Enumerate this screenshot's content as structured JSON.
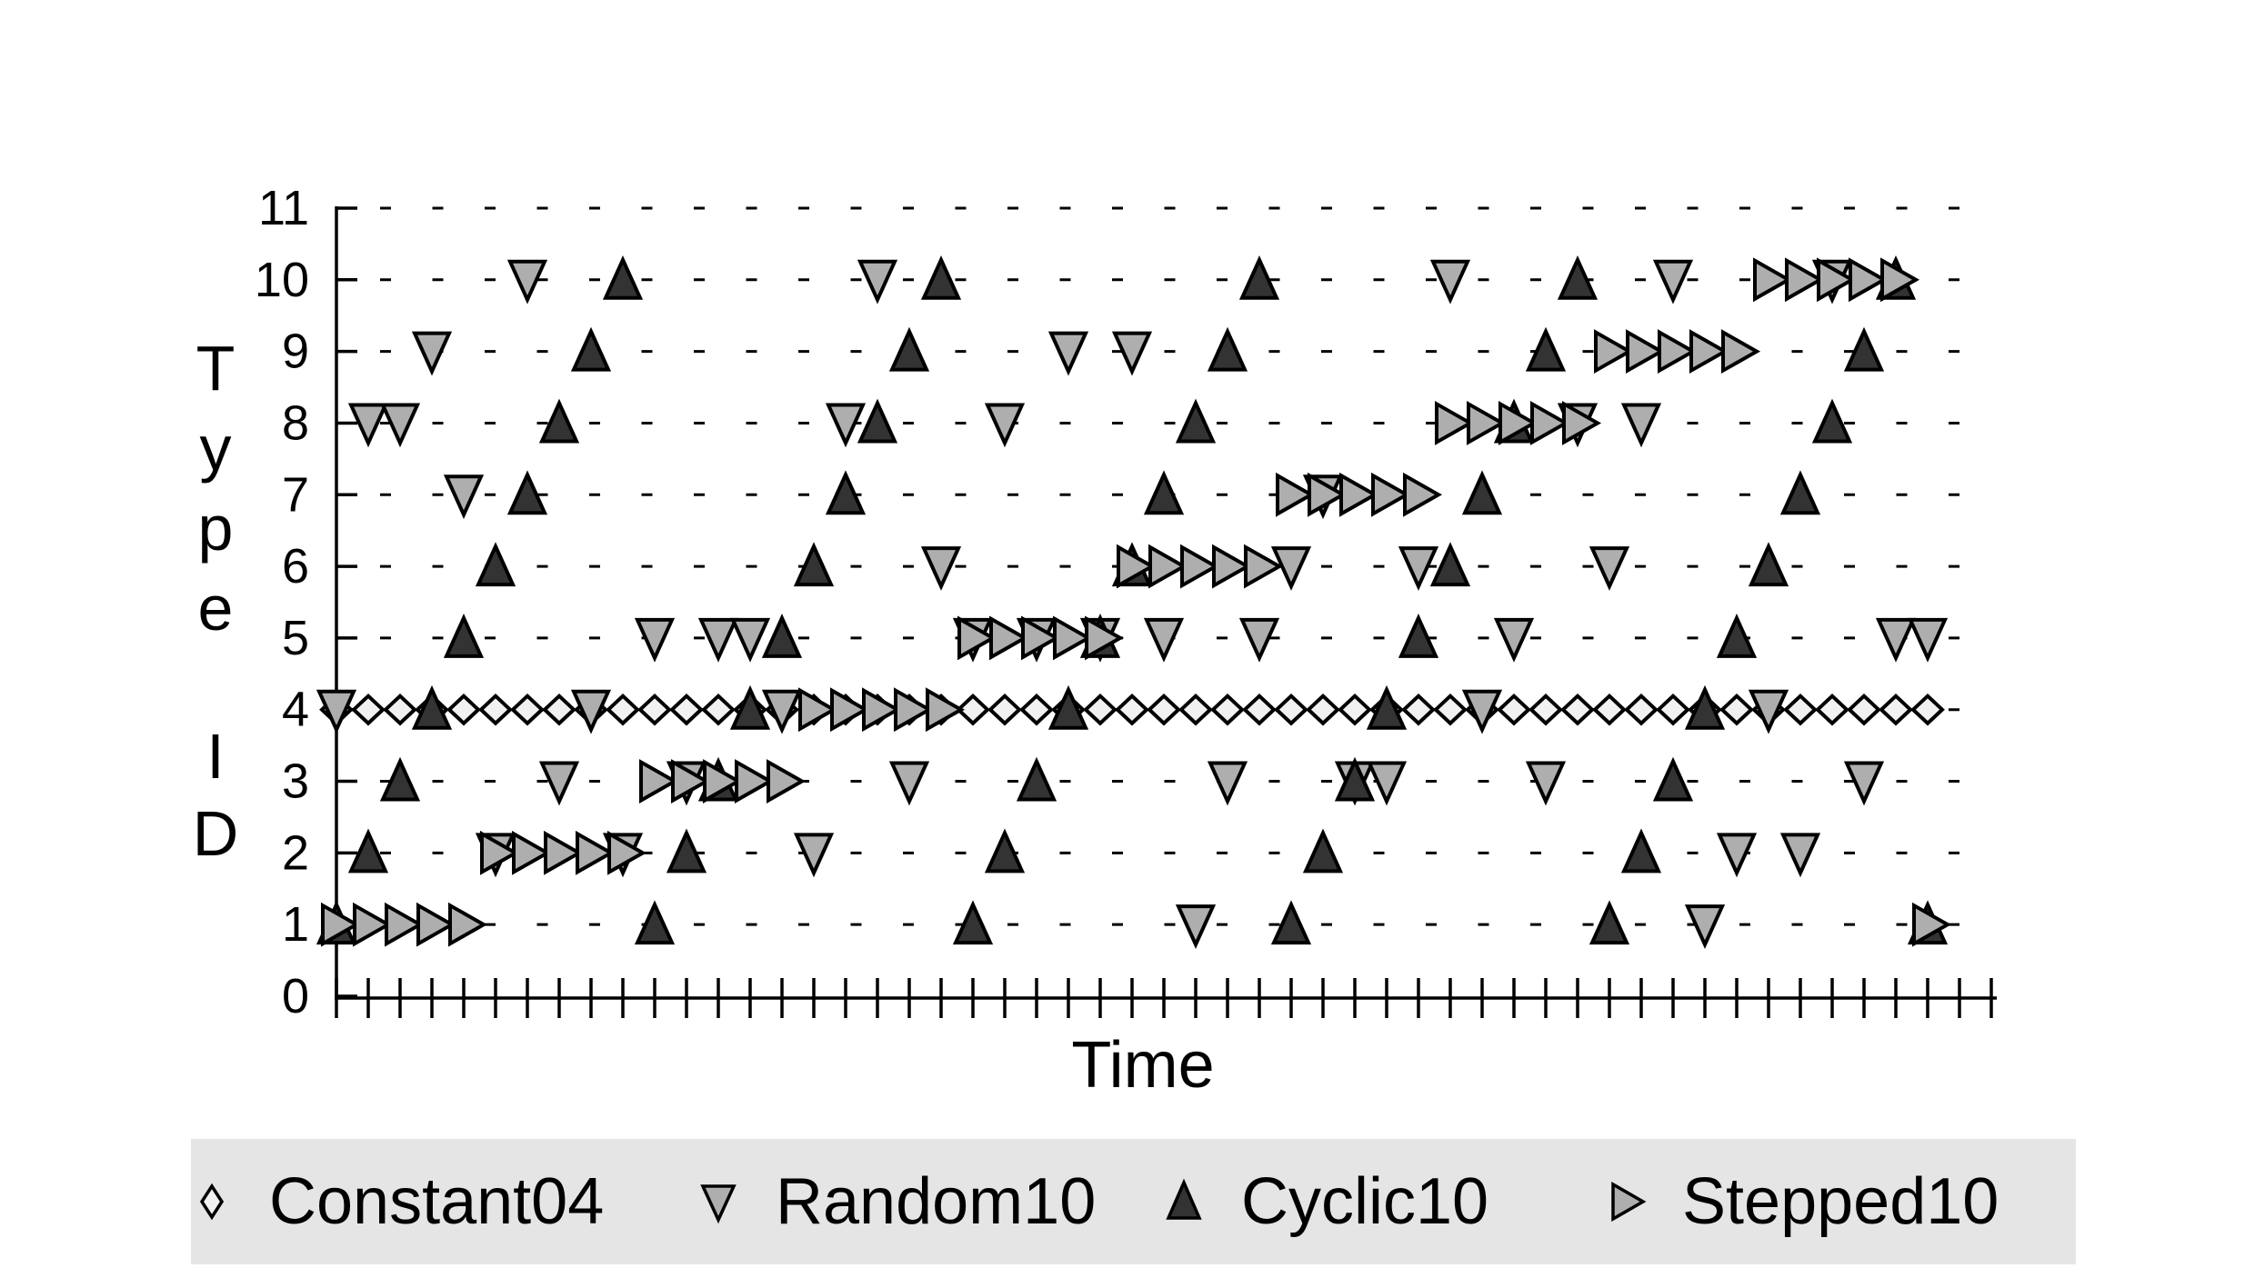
{
  "chart_data": {
    "type": "scatter",
    "title": "",
    "xlabel": "Time",
    "ylabel": "Type ID",
    "ylabel_word1": "Type",
    "ylabel_word2": "ID",
    "xlim": [
      0,
      52
    ],
    "ylim": [
      0,
      11
    ],
    "yticks": [
      0,
      1,
      2,
      3,
      4,
      5,
      6,
      7,
      8,
      9,
      10,
      11
    ],
    "ytick_labels": [
      "0",
      "1",
      "2",
      "3",
      "4",
      "5",
      "6",
      "7",
      "8",
      "9",
      "10",
      "11"
    ],
    "x_tick_count": 53,
    "x_tick_labels_visible": false,
    "grid": "dotted-horizontal",
    "legend_position": "bottom",
    "series": [
      {
        "name": "Constant04",
        "marker": "open-diamond",
        "fill": "#f1f1f1",
        "points": [
          [
            0,
            4
          ],
          [
            1,
            4
          ],
          [
            2,
            4
          ],
          [
            3,
            4
          ],
          [
            4,
            4
          ],
          [
            5,
            4
          ],
          [
            6,
            4
          ],
          [
            7,
            4
          ],
          [
            8,
            4
          ],
          [
            9,
            4
          ],
          [
            10,
            4
          ],
          [
            11,
            4
          ],
          [
            12,
            4
          ],
          [
            13,
            4
          ],
          [
            14,
            4
          ],
          [
            15,
            4
          ],
          [
            16,
            4
          ],
          [
            17,
            4
          ],
          [
            18,
            4
          ],
          [
            19,
            4
          ],
          [
            20,
            4
          ],
          [
            21,
            4
          ],
          [
            22,
            4
          ],
          [
            23,
            4
          ],
          [
            24,
            4
          ],
          [
            25,
            4
          ],
          [
            26,
            4
          ],
          [
            27,
            4
          ],
          [
            28,
            4
          ],
          [
            29,
            4
          ],
          [
            30,
            4
          ],
          [
            31,
            4
          ],
          [
            32,
            4
          ],
          [
            33,
            4
          ],
          [
            34,
            4
          ],
          [
            35,
            4
          ],
          [
            36,
            4
          ],
          [
            37,
            4
          ],
          [
            38,
            4
          ],
          [
            39,
            4
          ],
          [
            40,
            4
          ],
          [
            41,
            4
          ],
          [
            42,
            4
          ],
          [
            43,
            4
          ],
          [
            44,
            4
          ],
          [
            45,
            4
          ],
          [
            46,
            4
          ],
          [
            47,
            4
          ],
          [
            48,
            4
          ],
          [
            49,
            4
          ],
          [
            50,
            4
          ]
        ]
      },
      {
        "name": "Random10",
        "marker": "triangle-down",
        "fill": "#aeaeae",
        "points": [
          [
            0,
            4
          ],
          [
            1,
            8
          ],
          [
            2,
            8
          ],
          [
            3,
            9
          ],
          [
            4,
            7
          ],
          [
            5,
            2
          ],
          [
            6,
            10
          ],
          [
            7,
            3
          ],
          [
            8,
            4
          ],
          [
            9,
            2
          ],
          [
            10,
            5
          ],
          [
            11,
            3
          ],
          [
            12,
            5
          ],
          [
            13,
            5
          ],
          [
            14,
            4
          ],
          [
            15,
            2
          ],
          [
            16,
            8
          ],
          [
            17,
            10
          ],
          [
            18,
            3
          ],
          [
            19,
            6
          ],
          [
            20,
            5
          ],
          [
            21,
            8
          ],
          [
            22,
            5
          ],
          [
            23,
            9
          ],
          [
            24,
            5
          ],
          [
            25,
            9
          ],
          [
            26,
            5
          ],
          [
            27,
            1
          ],
          [
            28,
            3
          ],
          [
            29,
            5
          ],
          [
            30,
            6
          ],
          [
            31,
            7
          ],
          [
            32,
            3
          ],
          [
            33,
            3
          ],
          [
            34,
            6
          ],
          [
            35,
            10
          ],
          [
            36,
            4
          ],
          [
            37,
            5
          ],
          [
            38,
            3
          ],
          [
            39,
            8
          ],
          [
            40,
            6
          ],
          [
            41,
            8
          ],
          [
            42,
            10
          ],
          [
            43,
            1
          ],
          [
            44,
            2
          ],
          [
            45,
            4
          ],
          [
            46,
            2
          ],
          [
            47,
            10
          ],
          [
            48,
            3
          ],
          [
            49,
            5
          ],
          [
            50,
            5
          ]
        ]
      },
      {
        "name": "Cyclic10",
        "marker": "triangle-up",
        "fill": "#333333",
        "points": [
          [
            0,
            1
          ],
          [
            1,
            2
          ],
          [
            2,
            3
          ],
          [
            3,
            4
          ],
          [
            4,
            5
          ],
          [
            5,
            6
          ],
          [
            6,
            7
          ],
          [
            7,
            8
          ],
          [
            8,
            9
          ],
          [
            9,
            10
          ],
          [
            10,
            1
          ],
          [
            11,
            2
          ],
          [
            12,
            3
          ],
          [
            13,
            4
          ],
          [
            14,
            5
          ],
          [
            15,
            6
          ],
          [
            16,
            7
          ],
          [
            17,
            8
          ],
          [
            18,
            9
          ],
          [
            19,
            10
          ],
          [
            20,
            1
          ],
          [
            21,
            2
          ],
          [
            22,
            3
          ],
          [
            23,
            4
          ],
          [
            24,
            5
          ],
          [
            25,
            6
          ],
          [
            26,
            7
          ],
          [
            27,
            8
          ],
          [
            28,
            9
          ],
          [
            29,
            10
          ],
          [
            30,
            1
          ],
          [
            31,
            2
          ],
          [
            32,
            3
          ],
          [
            33,
            4
          ],
          [
            34,
            5
          ],
          [
            35,
            6
          ],
          [
            36,
            7
          ],
          [
            37,
            8
          ],
          [
            38,
            9
          ],
          [
            39,
            10
          ],
          [
            40,
            1
          ],
          [
            41,
            2
          ],
          [
            42,
            3
          ],
          [
            43,
            4
          ],
          [
            44,
            5
          ],
          [
            45,
            6
          ],
          [
            46,
            7
          ],
          [
            47,
            8
          ],
          [
            48,
            9
          ],
          [
            49,
            10
          ],
          [
            50,
            1
          ]
        ]
      },
      {
        "name": "Stepped10",
        "marker": "triangle-right",
        "fill": "#aeaeae",
        "points": [
          [
            0,
            1
          ],
          [
            1,
            1
          ],
          [
            2,
            1
          ],
          [
            3,
            1
          ],
          [
            4,
            1
          ],
          [
            5,
            2
          ],
          [
            6,
            2
          ],
          [
            7,
            2
          ],
          [
            8,
            2
          ],
          [
            9,
            2
          ],
          [
            10,
            3
          ],
          [
            11,
            3
          ],
          [
            12,
            3
          ],
          [
            13,
            3
          ],
          [
            14,
            3
          ],
          [
            15,
            4
          ],
          [
            16,
            4
          ],
          [
            17,
            4
          ],
          [
            18,
            4
          ],
          [
            19,
            4
          ],
          [
            20,
            5
          ],
          [
            21,
            5
          ],
          [
            22,
            5
          ],
          [
            23,
            5
          ],
          [
            24,
            5
          ],
          [
            25,
            6
          ],
          [
            26,
            6
          ],
          [
            27,
            6
          ],
          [
            28,
            6
          ],
          [
            29,
            6
          ],
          [
            30,
            7
          ],
          [
            31,
            7
          ],
          [
            32,
            7
          ],
          [
            33,
            7
          ],
          [
            34,
            7
          ],
          [
            35,
            8
          ],
          [
            36,
            8
          ],
          [
            37,
            8
          ],
          [
            38,
            8
          ],
          [
            39,
            8
          ],
          [
            40,
            9
          ],
          [
            41,
            9
          ],
          [
            42,
            9
          ],
          [
            43,
            9
          ],
          [
            44,
            9
          ],
          [
            45,
            10
          ],
          [
            46,
            10
          ],
          [
            47,
            10
          ],
          [
            48,
            10
          ],
          [
            49,
            10
          ],
          [
            50,
            1
          ]
        ]
      }
    ],
    "legend_entries": [
      "Constant04",
      "Random10",
      "Cyclic10",
      "Stepped10"
    ]
  },
  "colors": {
    "background": "#ffffff",
    "axis": "#000000",
    "grid": "#000000",
    "open_marker_fill": "#f1f1f1",
    "gray_marker_fill": "#aeaeae",
    "dark_marker_fill": "#333333",
    "legend_band": "#e5e5e5",
    "text": "#000000"
  }
}
